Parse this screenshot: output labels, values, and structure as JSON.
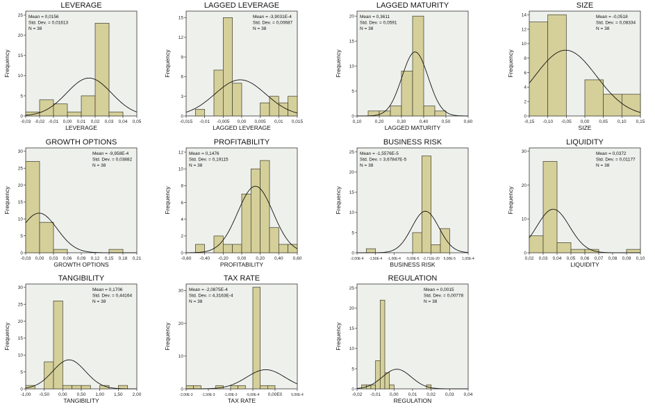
{
  "chart_data": [
    {
      "type": "bar",
      "title": "LEVERAGE",
      "xlabel": "LEVERAGE",
      "ylabel": "Frequency",
      "x_ticks": [
        "-0,03",
        "-0,02",
        "-0,01",
        "0,00",
        "0,01",
        "0,02",
        "0,03",
        "0,04",
        "0,05"
      ],
      "xlim": [
        -0.03,
        0.05
      ],
      "y_ticks": [
        0,
        5,
        10,
        15,
        20,
        25
      ],
      "ylim": [
        0,
        26
      ],
      "bin_start": -0.03,
      "bin_width": 0.01,
      "counts": [
        1,
        4,
        3,
        1,
        5,
        23,
        1
      ],
      "mean": 0.0156,
      "std": 0.01613,
      "n": 38,
      "stats": [
        "Mean = 0,0156",
        "Std. Dev. = 0,01613",
        "N = 38"
      ]
    },
    {
      "type": "bar",
      "title": "LAGGED LEVERAGE",
      "xlabel": "LAGGED LEVERAGE",
      "ylabel": "Frequency",
      "x_ticks": [
        "-0,015",
        "-0,01",
        "-0,005",
        "0,00",
        "0,005",
        "0,01",
        "0,015"
      ],
      "xlim": [
        -0.015,
        0.015
      ],
      "y_ticks": [
        0,
        3,
        6,
        9,
        12,
        15
      ],
      "ylim": [
        0,
        16
      ],
      "bin_start": -0.0125,
      "bin_width": 0.0025,
      "counts": [
        1,
        0,
        7,
        15,
        5,
        0,
        0,
        2,
        3,
        2,
        3
      ],
      "mean": -0.00039031,
      "std": 0.00687,
      "n": 38,
      "stats": [
        "Mean = -3,9031E-4",
        "Std. Dev. = 0,00687",
        "N = 38"
      ]
    },
    {
      "type": "bar",
      "title": "LAGGED MATURITY",
      "xlabel": "LAGGED MATURITY",
      "ylabel": "Frequency",
      "x_ticks": [
        "0,10",
        "0,20",
        "0,30",
        "0,40",
        "0,50",
        "0,60"
      ],
      "xlim": [
        0.1,
        0.6
      ],
      "y_ticks": [
        0,
        5,
        10,
        15,
        20
      ],
      "ylim": [
        0,
        21
      ],
      "bin_start": 0.15,
      "bin_width": 0.05,
      "counts": [
        1,
        1,
        2,
        9,
        20,
        2,
        1
      ],
      "mean": 0.3611,
      "std": 0.0591,
      "n": 38,
      "stats": [
        "Mean = 0,3611",
        "Std. Dev. = 0,0591",
        "N = 38"
      ]
    },
    {
      "type": "bar",
      "title": "SIZE",
      "xlabel": "SIZE",
      "ylabel": "Frequency",
      "x_ticks": [
        "-0,15",
        "-0,10",
        "-0,05",
        "0,00",
        "0,05",
        "0,10",
        "0,15"
      ],
      "xlim": [
        -0.15,
        0.15
      ],
      "y_ticks": [
        0,
        2,
        4,
        6,
        8,
        10,
        12,
        14
      ],
      "ylim": [
        0,
        14.5
      ],
      "bin_start": -0.15,
      "bin_width": 0.05,
      "counts": [
        13,
        14,
        0,
        5,
        3,
        3
      ],
      "mean": -0.0518,
      "std": 0.08334,
      "n": 38,
      "stats": [
        "Mean = -0,0518",
        "Std. Dev. = 0,08334",
        "N = 38"
      ]
    },
    {
      "type": "bar",
      "title": "GROWTH OPTIONS",
      "xlabel": "GROWTH OPTIONS",
      "ylabel": "Frequency",
      "x_ticks": [
        "-0,03",
        "0,00",
        "0,03",
        "0,06",
        "0,09",
        "0,12",
        "0,15",
        "0,18",
        "0,21"
      ],
      "xlim": [
        -0.03,
        0.21
      ],
      "y_ticks": [
        0,
        5,
        10,
        15,
        20,
        25,
        30
      ],
      "ylim": [
        0,
        31
      ],
      "bin_start": -0.03,
      "bin_width": 0.03,
      "counts": [
        27,
        9,
        1,
        0,
        0,
        0,
        1
      ],
      "mean": -0.0009958,
      "std": 0.03882,
      "n": 38,
      "stats": [
        "Mean = -9,958E-4",
        "Std. Dev. = 0,03882",
        "N = 38"
      ]
    },
    {
      "type": "bar",
      "title": "PROFITABILITY",
      "xlabel": "PROFITABILITY",
      "ylabel": "Frequency",
      "x_ticks": [
        "-0,60",
        "-0,40",
        "-0,20",
        "0,00",
        "0,20",
        "0,40",
        "0,60"
      ],
      "xlim": [
        -0.6,
        0.6
      ],
      "y_ticks": [
        0,
        2,
        4,
        6,
        8,
        10,
        12
      ],
      "ylim": [
        0,
        12.5
      ],
      "bin_start": -0.5,
      "bin_width": 0.1,
      "counts": [
        1,
        0,
        2,
        1,
        1,
        7,
        10,
        11,
        3,
        1,
        1
      ],
      "mean": 0.1476,
      "std": 0.19115,
      "n": 38,
      "stats": [
        "Mean = 0,1476",
        "Std. Dev. = 0,19115",
        "N = 38"
      ]
    },
    {
      "type": "bar",
      "title": "BUSINESS RISK",
      "xlabel": "BUSINESS RISK",
      "ylabel": "Frequency",
      "x_ticks": [
        "-2,00E-4",
        "-1,50E-4",
        "-1,00E-4",
        "-5,00E-5",
        "-2,711E-20",
        "5,00E-5",
        "1,00E-4"
      ],
      "xlim": [
        -0.0002,
        0.0001
      ],
      "y_ticks": [
        0,
        5,
        10,
        15,
        20,
        25
      ],
      "ylim": [
        0,
        26
      ],
      "bin_start": -0.000175,
      "bin_width": 2.5e-05,
      "counts": [
        1,
        0,
        0,
        0,
        0,
        5,
        24,
        2,
        6
      ],
      "mean": -1.5576e-05,
      "std": 3.67847e-05,
      "n": 38,
      "stats": [
        "Mean = -1,5576E-5",
        "Std. Dev. = 3,67847E-5",
        "N = 38"
      ]
    },
    {
      "type": "bar",
      "title": "LIQUIDITY",
      "xlabel": "LIQUIDITY",
      "ylabel": "Frequency",
      "x_ticks": [
        "0,02",
        "0,03",
        "0,04",
        "0,05",
        "0,06",
        "0,07",
        "0,08",
        "0,09",
        "0,10"
      ],
      "xlim": [
        0.02,
        0.1
      ],
      "y_ticks": [
        0,
        10,
        20,
        30
      ],
      "ylim": [
        0,
        31
      ],
      "bin_start": 0.02,
      "bin_width": 0.01,
      "counts": [
        5,
        27,
        3,
        1,
        1,
        0,
        0,
        1
      ],
      "mean": 0.0372,
      "std": 0.01177,
      "n": 38,
      "stats": [
        "Mean = 0,0372",
        "Std. Dev. = 0,01177",
        "N = 38"
      ]
    },
    {
      "type": "bar",
      "title": "TANGIBILITY",
      "xlabel": "TANGIBILITY",
      "ylabel": "Frequency",
      "x_ticks": [
        "-1,00",
        "-0,50",
        "0,00",
        "0,50",
        "1,00",
        "1,50",
        "2,00"
      ],
      "xlim": [
        -1.0,
        2.0
      ],
      "y_ticks": [
        0,
        5,
        10,
        15,
        20,
        25,
        30
      ],
      "ylim": [
        0,
        31
      ],
      "bin_start": -1.0,
      "bin_width": 0.25,
      "counts": [
        1,
        0,
        8,
        26,
        1,
        1,
        1,
        0,
        1,
        0,
        1
      ],
      "mean": 0.1706,
      "std": 0.44164,
      "n": 38,
      "stats": [
        "Mean = 0,1706",
        "Std. Dev. = 0,44164",
        "N = 38"
      ]
    },
    {
      "type": "bar",
      "title": "TAX RATE",
      "xlabel": "TAX RATE",
      "ylabel": "Frequency",
      "x_ticks": [
        "-2,00E-3",
        "-1,50E-3",
        "-1,00E-3",
        "-5,00E-4",
        "0,00E0",
        "5,00E-4"
      ],
      "xlim": [
        -0.002,
        0.0005
      ],
      "y_ticks": [
        0,
        10,
        20,
        30
      ],
      "ylim": [
        0,
        32
      ],
      "bin_start": -0.002,
      "bin_width": 0.00016667,
      "counts": [
        1,
        1,
        0,
        0,
        1,
        0,
        1,
        1,
        0,
        31,
        1,
        1
      ],
      "mean": -0.00020875,
      "std": 0.00043163,
      "n": 38,
      "stats": [
        "Mean = -2,0875E-4",
        "Std. Dev. = 4,3163E-4",
        "N = 38"
      ]
    },
    {
      "type": "bar",
      "title": "REGULATION",
      "xlabel": "REGULATION",
      "ylabel": "Frequency",
      "x_ticks": [
        "-0,02",
        "-0,01",
        "0,00",
        "0,01",
        "0,02",
        "0,03",
        "0,04"
      ],
      "xlim": [
        -0.02,
        0.04
      ],
      "y_ticks": [
        0,
        5,
        10,
        15,
        20,
        25
      ],
      "ylim": [
        0,
        26
      ],
      "bin_start": -0.0175,
      "bin_width": 0.0025,
      "counts": [
        1,
        1,
        1,
        7,
        22,
        4,
        1,
        0,
        0,
        0,
        0,
        0,
        0,
        0,
        1
      ],
      "mean": 0.0015,
      "std": 0.00778,
      "n": 38,
      "stats": [
        "Mean = 0,0015",
        "Std. Dev. = 0,00778",
        "N = 38"
      ]
    }
  ]
}
